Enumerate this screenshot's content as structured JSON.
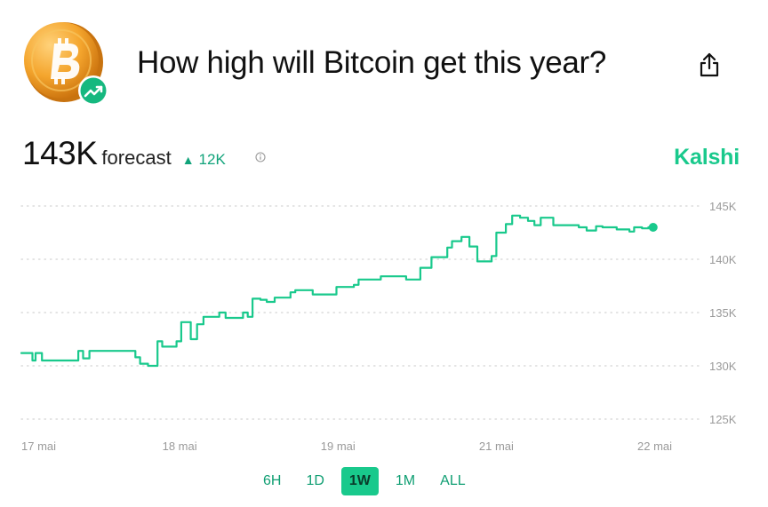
{
  "header": {
    "title": "How high will Bitcoin get this year?"
  },
  "forecast": {
    "value": "143K",
    "label": "forecast",
    "delta": "12K",
    "delta_direction": "up",
    "brand": "Kalshi"
  },
  "colors": {
    "line": "#19c98c",
    "accent": "#19c98c",
    "delta": "#10a37a",
    "grid": "#d4d4d4",
    "axis_text": "#9a9a9a",
    "coin": "#f0a329"
  },
  "icons": {
    "logo": "bitcoin-coin-icon",
    "badge": "trending-up-icon",
    "share": "share-icon",
    "info": "info-icon",
    "delta": "triangle-up-icon"
  },
  "range_selector": {
    "options": [
      "6H",
      "1D",
      "1W",
      "1M",
      "ALL"
    ],
    "selected": "1W"
  },
  "chart_data": {
    "type": "line",
    "title": "",
    "xlabel": "",
    "ylabel": "",
    "ylim": [
      125,
      145
    ],
    "y_ticks": [
      125,
      130,
      135,
      140,
      145
    ],
    "y_tick_labels": [
      "125K",
      "130K",
      "135K",
      "140K",
      "145K"
    ],
    "x_ticks": [
      0,
      1,
      2,
      3,
      4
    ],
    "x_tick_labels": [
      "17 mai",
      "18 mai",
      "19 mai",
      "21 mai",
      "22 mai"
    ],
    "xlim": [
      0,
      4.3
    ],
    "grid": true,
    "legend": "none",
    "series": [
      {
        "step": true,
        "x": [
          0,
          0.07,
          0.09,
          0.13,
          0.14,
          0.18,
          0.36,
          0.39,
          0.43,
          0.72,
          0.75,
          0.8,
          0.86,
          0.89,
          0.98,
          1.01,
          1.07,
          1.11,
          1.15,
          1.21,
          1.25,
          1.29,
          1.4,
          1.43,
          1.46,
          1.51,
          1.55,
          1.6,
          1.67,
          1.7,
          1.73,
          1.78,
          1.84,
          1.96,
          1.99,
          2.1,
          2.13,
          2.17,
          2.27,
          2.43,
          2.52,
          2.59,
          2.69,
          2.72,
          2.78,
          2.83,
          2.88,
          2.97,
          3.0,
          3.06,
          3.1,
          3.15,
          3.2,
          3.24,
          3.28,
          3.32,
          3.36,
          3.41,
          3.45,
          3.52,
          3.57,
          3.63,
          3.67,
          3.76,
          3.84,
          3.87,
          3.92,
          3.96,
          3.99
        ],
        "y": [
          131.2,
          130.5,
          131.2,
          130.5,
          130.5,
          130.5,
          131.4,
          130.7,
          131.4,
          130.8,
          130.2,
          130.0,
          132.3,
          131.8,
          132.3,
          134.1,
          132.5,
          133.9,
          134.6,
          134.6,
          135.0,
          134.5,
          135.0,
          134.6,
          136.3,
          136.2,
          136.0,
          136.4,
          136.4,
          136.9,
          137.1,
          137.1,
          136.7,
          136.7,
          137.4,
          137.6,
          138.1,
          138.1,
          138.4,
          138.1,
          139.2,
          140.2,
          141.1,
          141.7,
          142.1,
          141.2,
          139.8,
          140.3,
          142.5,
          143.3,
          144.1,
          143.9,
          143.6,
          143.2,
          143.9,
          143.9,
          143.2,
          143.2,
          143.2,
          143.0,
          142.7,
          143.1,
          143.0,
          142.8,
          142.6,
          143.0,
          142.9,
          143.0,
          143.0
        ]
      }
    ]
  }
}
